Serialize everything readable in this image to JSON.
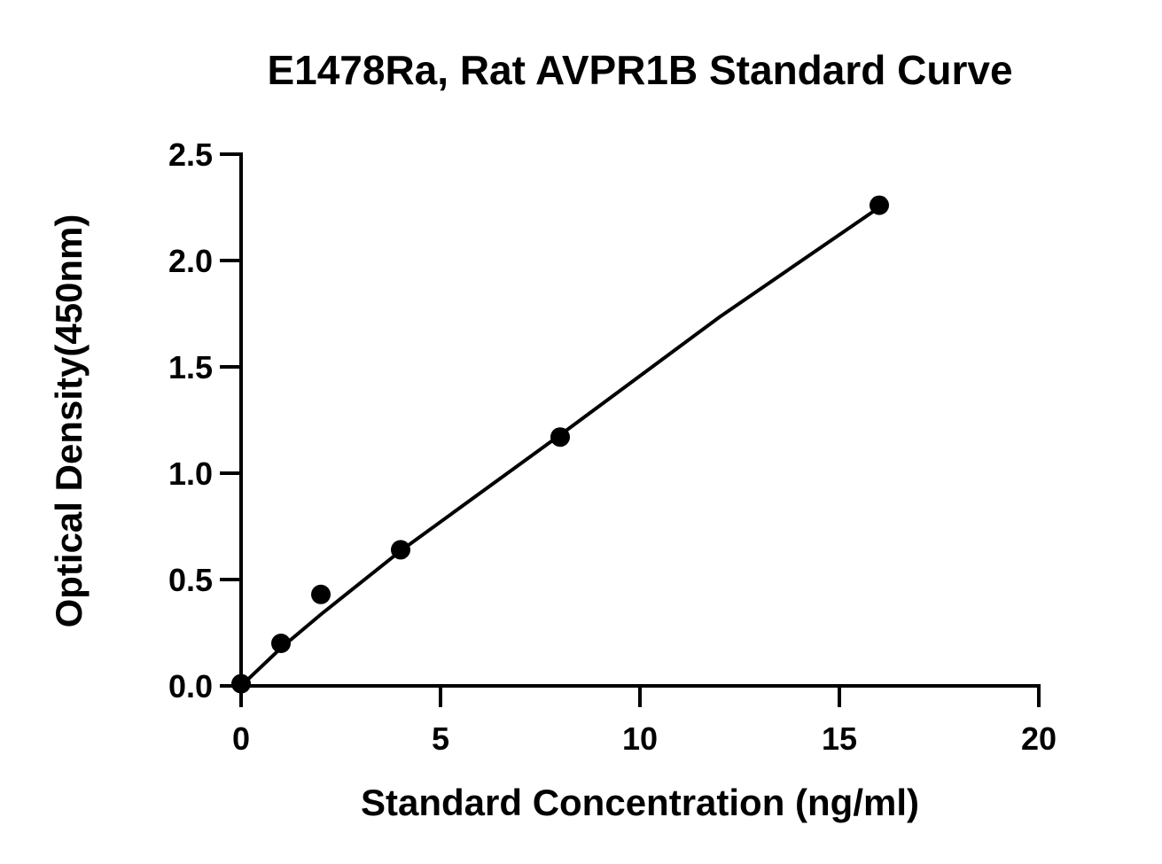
{
  "chart_data": {
    "type": "scatter",
    "title": "E1478Ra, Rat AVPR1B Standard Curve",
    "xlabel": "Standard Concentration (ng/ml)",
    "ylabel": "Optical Density(450nm)",
    "xlim": [
      0,
      20
    ],
    "ylim": [
      0,
      2.5
    ],
    "xticks": [
      0,
      5,
      10,
      15,
      20
    ],
    "yticks": [
      0.0,
      0.5,
      1.0,
      1.5,
      2.0,
      2.5
    ],
    "xtick_labels": [
      "0",
      "5",
      "10",
      "15",
      "20"
    ],
    "ytick_labels": [
      "0.0",
      "0.5",
      "1.0",
      "1.5",
      "2.0",
      "2.5"
    ],
    "grid": false,
    "legend": "none",
    "series": [
      {
        "x": [
          0,
          1,
          2,
          4,
          8,
          16
        ],
        "y": [
          0.01,
          0.2,
          0.43,
          0.64,
          1.17,
          2.26
        ],
        "marker": "circle",
        "color": "#000000"
      }
    ],
    "fit_curve": {
      "x": [
        0,
        1,
        2,
        4,
        8,
        12,
        16
      ],
      "y": [
        0.0,
        0.178,
        0.336,
        0.635,
        1.18,
        1.735,
        2.25
      ],
      "color": "#000000"
    }
  }
}
